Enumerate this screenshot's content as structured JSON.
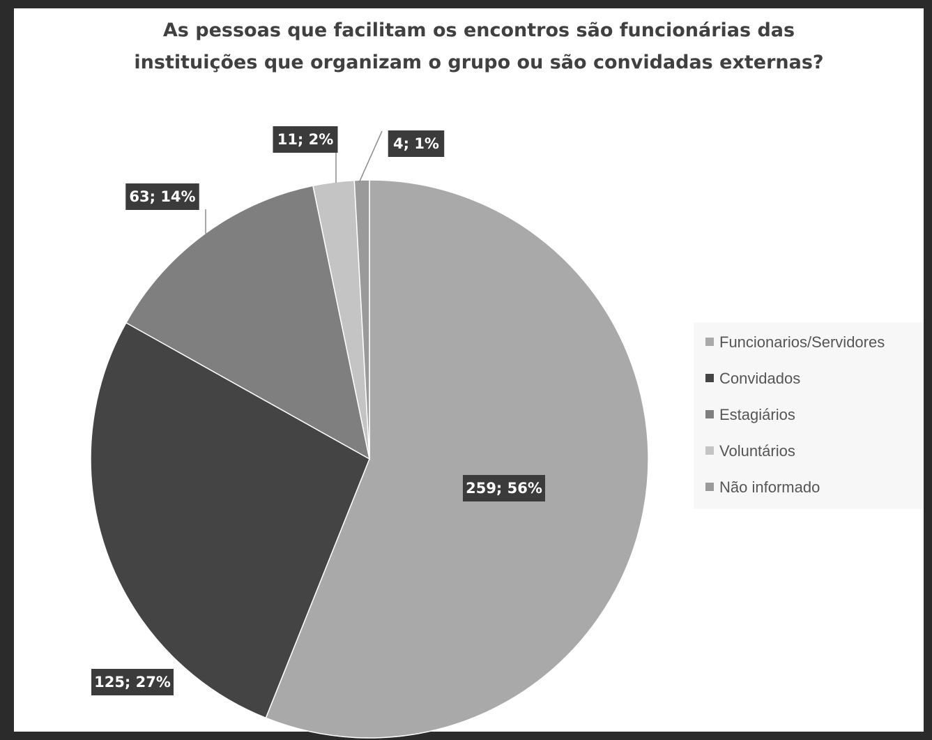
{
  "chart_data": {
    "type": "pie",
    "title": "As pessoas que facilitam os encontros são funcionárias das instituições que organizam o grupo ou são convidadas externas?",
    "title_lines": [
      "As pessoas que facilitam os encontros são funcionárias das",
      "instituições que organizam o grupo ou são convidadas externas?"
    ],
    "categories": [
      "Funcionarios/Servidores",
      "Convidados",
      "Estagiários",
      "Voluntários",
      "Não informado"
    ],
    "values": [
      259,
      125,
      63,
      11,
      4
    ],
    "percent_labels": [
      "56%",
      "27%",
      "14%",
      "2%",
      "1%"
    ],
    "data_labels": [
      "259; 56%",
      "125; 27%",
      "63; 14%",
      "11; 2%",
      "4; 1%"
    ],
    "colors": [
      "#a9a9a9",
      "#444444",
      "#7f7f7f",
      "#c4c4c4",
      "#9a9a9a"
    ],
    "legend_position": "right",
    "start_direction": "top",
    "direction": "clockwise"
  }
}
